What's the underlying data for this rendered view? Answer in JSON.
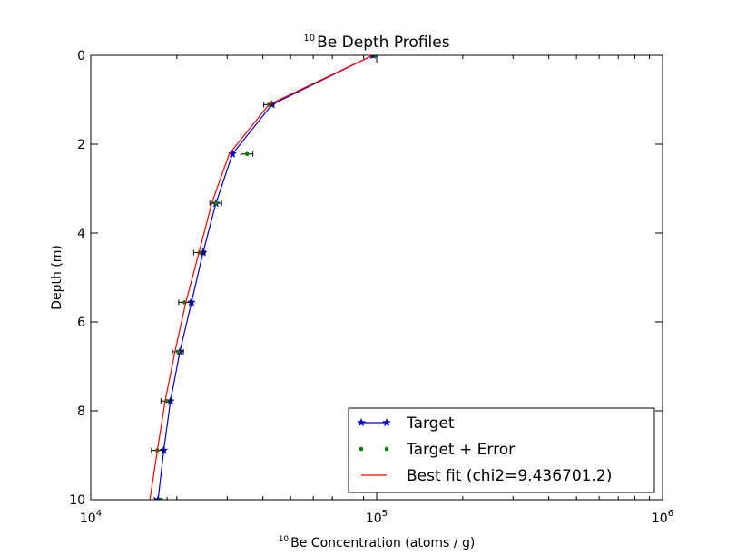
{
  "chart_data": {
    "type": "line",
    "title": {
      "sup": "10",
      "text": "Be Depth Profiles"
    },
    "xlabel": {
      "sup": "10",
      "text": "Be Concentration (atoms / g)"
    },
    "ylabel": "Depth (m)",
    "x_scale": "log",
    "xlim": [
      10000,
      1000000
    ],
    "ylim": [
      10,
      0
    ],
    "y_inverted": true,
    "x_ticks": [
      {
        "base": "10",
        "exp": "4",
        "value": 10000
      },
      {
        "base": "10",
        "exp": "5",
        "value": 100000
      },
      {
        "base": "10",
        "exp": "6",
        "value": 1000000
      }
    ],
    "y_ticks": [
      {
        "label": "0",
        "value": 0
      },
      {
        "label": "2",
        "value": 2
      },
      {
        "label": "4",
        "value": 4
      },
      {
        "label": "6",
        "value": 6
      },
      {
        "label": "8",
        "value": 8
      },
      {
        "label": "10",
        "value": 10
      }
    ],
    "grid": false,
    "legend_position": "lower-right",
    "series": [
      {
        "name": "Target",
        "color": "#0000cc",
        "marker": "star",
        "line": true,
        "x": [
          97000,
          43000,
          31300,
          27400,
          24700,
          22500,
          20500,
          19000,
          18000,
          17200
        ],
        "y": [
          0,
          1.11,
          2.22,
          3.33,
          4.44,
          5.56,
          6.67,
          7.78,
          8.89,
          10
        ]
      },
      {
        "name": "Target + Error",
        "color": "#008000",
        "marker": "dot",
        "line": false,
        "x": [
          99000,
          42000,
          35200,
          27400,
          24000,
          21300,
          20200,
          18400,
          17100,
          17600
        ],
        "y": [
          0,
          1.11,
          2.22,
          3.33,
          4.44,
          5.56,
          6.67,
          7.78,
          8.89,
          10
        ],
        "xerr": [
          2000,
          1700,
          1700,
          1300,
          1100,
          1000,
          900,
          800,
          800,
          900
        ]
      },
      {
        "name": "Best fit (chi2=9.436701.2)",
        "color": "#ff0000",
        "marker": "none",
        "line": true,
        "x": [
          97000,
          42000,
          30500,
          26500,
          23900,
          21500,
          19700,
          18200,
          17100,
          16100
        ],
        "y": [
          0,
          1.11,
          2.22,
          3.33,
          4.44,
          5.56,
          6.67,
          7.78,
          8.89,
          10
        ]
      }
    ]
  }
}
